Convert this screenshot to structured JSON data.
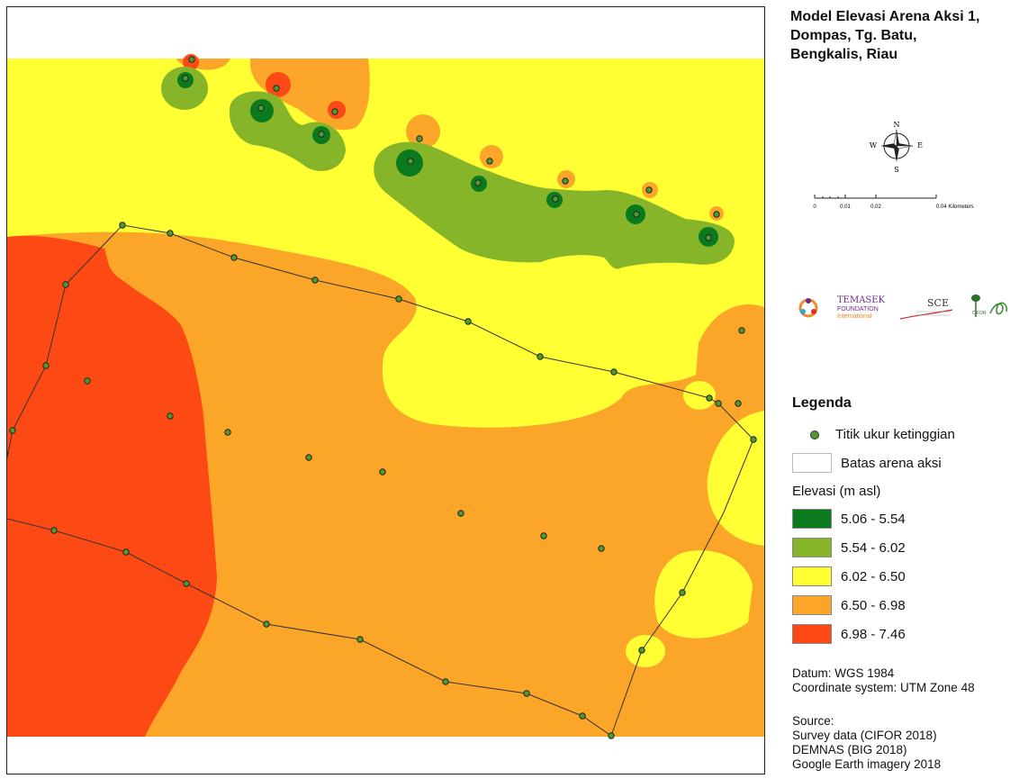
{
  "title": "Model Elevasi Arena Aksi 1,\nDompas, Tg. Batu,\nBengkalis, Riau",
  "north_arrow": {
    "n": "N",
    "s": "S",
    "e": "E",
    "w": "W"
  },
  "scale_bar": {
    "ticks": [
      "0",
      "0.01",
      "0.02",
      "0.04 Kilometers"
    ]
  },
  "logos": {
    "temasek_line1": "TEMASEK",
    "temasek_line2": "FOUNDATION",
    "temasek_line3": "International",
    "sce": "SCE",
    "cifor": "CIFOR"
  },
  "legend": {
    "title": "Legenda",
    "point_label": "Titik ukur ketinggian",
    "boundary_label": "Batas arena aksi",
    "elevation_title": "Elevasi (m asl)",
    "classes": [
      {
        "range": "5.06 - 5.54",
        "color": "#0b7a1e"
      },
      {
        "range": "5.54 - 6.02",
        "color": "#86b52a"
      },
      {
        "range": "6.02 - 6.50",
        "color": "#ffff33"
      },
      {
        "range": "6.50 - 6.98",
        "color": "#fba629"
      },
      {
        "range": "6.98 - 7.46",
        "color": "#fd4a14"
      }
    ]
  },
  "datum": "Datum: WGS 1984\nCoordinate system: UTM Zone 48",
  "source": "Source:\nSurvey data (CIFOR 2018)\nDEMNAS (BIG 2018)\nGoogle Earth imagery 2018",
  "colors": {
    "point": "#4f9b32",
    "boundary": "#333333"
  }
}
